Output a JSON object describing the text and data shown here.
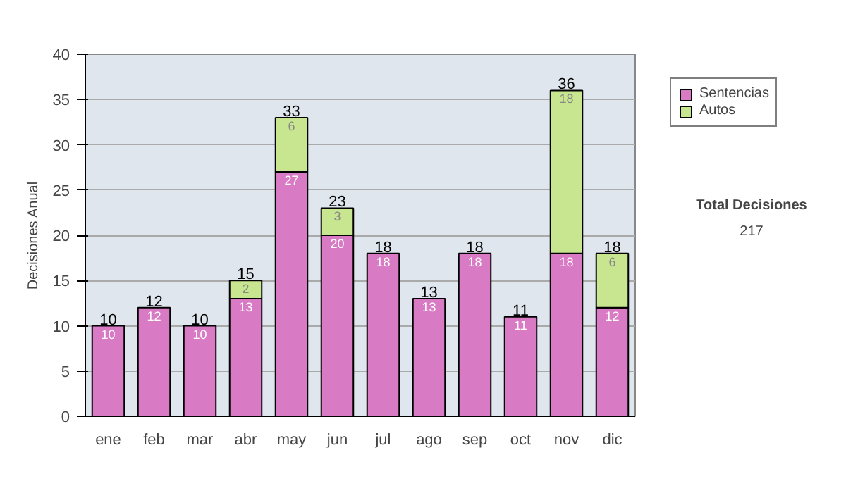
{
  "chart_data": {
    "type": "bar",
    "stacked": true,
    "ylabel": "Decisiones Anual",
    "categories": [
      "ene",
      "feb",
      "mar",
      "abr",
      "may",
      "jun",
      "jul",
      "ago",
      "sep",
      "oct",
      "nov",
      "dic"
    ],
    "series": [
      {
        "name": "Sentencias",
        "color": "#d97ac4",
        "values": [
          10,
          12,
          10,
          13,
          27,
          20,
          18,
          13,
          18,
          11,
          18,
          12
        ],
        "value_labels": [
          "10",
          "12",
          "10",
          "13",
          "27",
          "20",
          "18",
          "13",
          "18",
          "11",
          "18",
          "12"
        ]
      },
      {
        "name": "Autos",
        "color": "#c8e690",
        "values": [
          0,
          0,
          0,
          2,
          6,
          3,
          0,
          0,
          0,
          0,
          18,
          6
        ],
        "value_labels": [
          null,
          null,
          null,
          "2",
          "6",
          "3",
          null,
          null,
          null,
          null,
          "18",
          "6"
        ]
      }
    ],
    "totals": [
      "10",
      "12",
      "10",
      "15",
      "33",
      "23",
      "18",
      "13",
      "18",
      "11",
      "36",
      "18"
    ],
    "ylim": [
      0,
      40
    ],
    "yticks": [
      0,
      5,
      10,
      15,
      20,
      25,
      30,
      35,
      40
    ],
    "grid": "y",
    "legend": "right",
    "annotations": [
      "Total Decisiones",
      "217"
    ]
  }
}
